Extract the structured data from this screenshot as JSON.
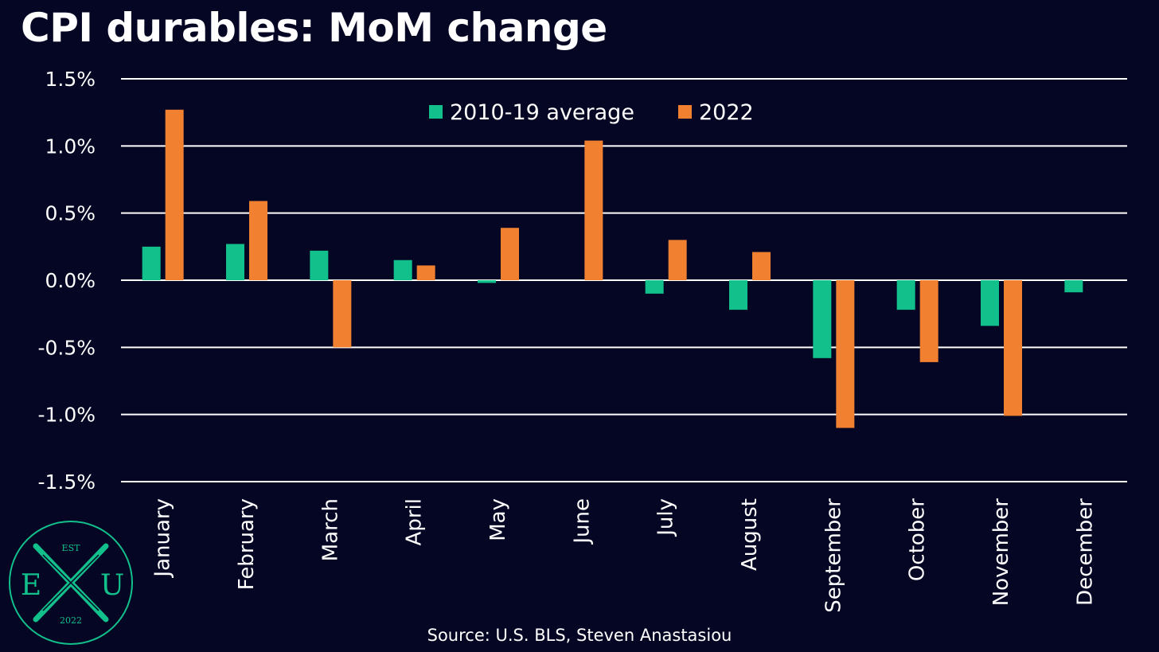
{
  "chart_data": {
    "type": "bar",
    "title": "CPI durables: MoM change",
    "categories": [
      "January",
      "February",
      "March",
      "April",
      "May",
      "June",
      "July",
      "August",
      "September",
      "October",
      "November",
      "December"
    ],
    "series": [
      {
        "name": "2010-19 average",
        "color": "#12C08B",
        "values": [
          0.25,
          0.27,
          0.22,
          0.15,
          -0.02,
          0.0,
          -0.1,
          -0.22,
          -0.58,
          -0.22,
          -0.34,
          -0.09
        ]
      },
      {
        "name": "2022",
        "color": "#F18031",
        "values": [
          1.27,
          0.59,
          -0.5,
          0.11,
          0.39,
          1.04,
          0.3,
          0.21,
          -1.1,
          -0.61,
          -1.01,
          null
        ]
      }
    ],
    "yticks": [
      "1.5%",
      "1.0%",
      "0.5%",
      "0.0%",
      "-0.5%",
      "-1.0%",
      "-1.5%"
    ],
    "ytick_values": [
      1.5,
      1.0,
      0.5,
      0.0,
      -0.5,
      -1.0,
      -1.5
    ],
    "ylim": [
      -1.5,
      1.5
    ],
    "grid": true,
    "legend_position": "top-center",
    "source": "Source: U.S. BLS, Steven Anastasiou"
  },
  "logo": {
    "top": "EST",
    "left": "E",
    "right": "U",
    "bottom": "2022"
  }
}
